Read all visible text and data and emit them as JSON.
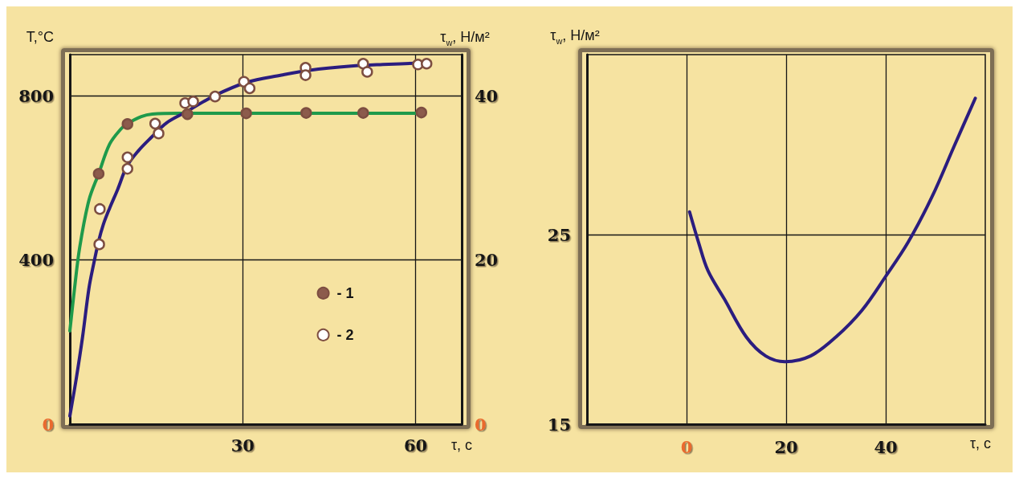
{
  "chart_data": [
    {
      "type": "scatter",
      "ylabel": "T,°C",
      "y2label": "τ$_{w}$, Н/м²",
      "xlabel": "τ, с",
      "xlim": [
        0,
        68
      ],
      "xticks": [
        30,
        60
      ],
      "ylim": [
        0,
        900
      ],
      "yticks": [
        0,
        400,
        800
      ],
      "y2lim": [
        0,
        45
      ],
      "y2ticks": [
        0,
        20,
        40
      ],
      "grid": true,
      "legend": "center",
      "series": [
        {
          "type": "line",
          "color": "#1f9a4b",
          "line_style": "solid",
          "marker": "none",
          "x": [
            0,
            0.8,
            1.7,
            3.3,
            5.0,
            6.9,
            8.8,
            9.9,
            12.4,
            14.3,
            19.0,
            61.0
          ],
          "values": [
            227,
            329,
            430,
            545,
            610,
            682,
            718,
            731,
            749,
            755,
            757,
            757
          ]
        },
        {
          "type": "line",
          "color": "#2b1d7f",
          "line_style": "solid",
          "marker": "none",
          "axis": "y2",
          "x": [
            0,
            1.1,
            2.2,
            3.3,
            4.1,
            5.0,
            5.8,
            6.9,
            8.3,
            9.9,
            11.9,
            14.1,
            16.8,
            20.1,
            25.1,
            30.6,
            36.7,
            41.6,
            48.8,
            54.3,
            62.1
          ],
          "values": [
            1.0,
            5.5,
            10.6,
            16.5,
            19.4,
            22.3,
            24.3,
            26.3,
            28.6,
            31.4,
            33.3,
            34.9,
            36.7,
            38.0,
            40.0,
            41.6,
            42.5,
            43.1,
            43.6,
            43.8,
            44.0
          ]
        },
        {
          "name": "- 1",
          "marker": "circle",
          "color": "#8c5b4c",
          "x": [
            5.0,
            10.0,
            20.4,
            30.6,
            41.0,
            50.9,
            61.0
          ],
          "values": [
            610,
            731,
            755,
            757,
            758,
            758,
            759
          ]
        },
        {
          "name": "- 2",
          "marker": "circle",
          "color": "#ffffff",
          "axis": "y2",
          "x": [
            5.2,
            5.1,
            10.0,
            10.0,
            14.8,
            15.4,
            20.0,
            21.4,
            25.2,
            30.2,
            31.2,
            40.9,
            40.9,
            50.9,
            51.6,
            60.4,
            61.9
          ],
          "values": [
            26.2,
            21.9,
            32.5,
            31.1,
            36.6,
            35.4,
            39.1,
            39.3,
            39.9,
            41.7,
            40.9,
            43.4,
            42.5,
            43.9,
            42.9,
            43.8,
            43.9
          ]
        }
      ]
    },
    {
      "type": "line",
      "ylabel": "τ$_{w}$, Н/м²",
      "xlabel": "τ, с",
      "xlim": [
        -20,
        60
      ],
      "xticks": [
        0,
        20,
        40
      ],
      "ylim": [
        15,
        34.5
      ],
      "yticks": [
        15,
        25
      ],
      "grid": true,
      "line_style": "solid",
      "series": [
        {
          "color": "#2b1d7f",
          "x": [
            0.6,
            2.4,
            4.3,
            7.6,
            12.0,
            15.9,
            19.8,
            24.9,
            30.0,
            35.2,
            40.0,
            44.5,
            49.3,
            53.8,
            58.0
          ],
          "values": [
            26.2,
            24.6,
            23.1,
            21.6,
            19.6,
            18.6,
            18.3,
            18.6,
            19.6,
            21.0,
            22.8,
            24.6,
            27.0,
            29.7,
            32.2
          ]
        }
      ]
    }
  ]
}
